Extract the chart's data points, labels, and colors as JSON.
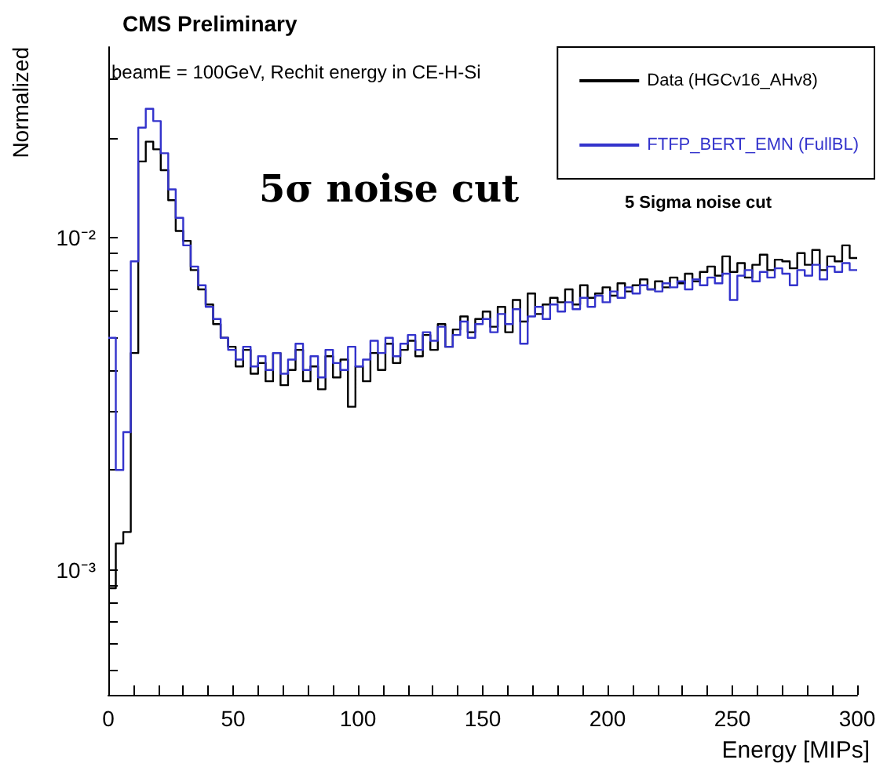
{
  "chart_data": {
    "type": "histogram",
    "title": "CMS Preliminary",
    "xlabel": "Energy [MIPs]",
    "ylabel": "Normalized",
    "annotations": [
      "beamE = 100GeV, Rechit energy in CE-H-Si",
      "5σ noise cut",
      "5 Sigma noise cut"
    ],
    "bins": [
      0,
      3,
      6,
      9,
      12,
      15,
      18,
      21,
      24,
      27,
      30,
      33,
      36,
      39,
      42,
      45,
      48,
      51,
      54,
      57,
      60,
      63,
      66,
      69,
      72,
      75,
      78,
      81,
      84,
      87,
      90,
      93,
      96,
      99,
      102,
      105,
      108,
      111,
      114,
      117,
      120,
      123,
      126,
      129,
      132,
      135,
      138,
      141,
      144,
      147,
      150,
      153,
      156,
      159,
      162,
      165,
      168,
      171,
      174,
      177,
      180,
      183,
      186,
      189,
      192,
      195,
      198,
      201,
      204,
      207,
      210,
      213,
      216,
      219,
      222,
      225,
      228,
      231,
      234,
      237,
      240,
      243,
      246,
      249,
      252,
      255,
      258,
      261,
      264,
      267,
      270,
      273,
      276,
      279,
      282,
      285,
      288,
      291,
      294,
      297,
      300
    ],
    "series": [
      {
        "name": "Data (HGCv16_AHv8)",
        "color": "#000000",
        "values": [
          0.00088,
          0.0012,
          0.0013,
          0.0045,
          0.017,
          0.0195,
          0.0185,
          0.016,
          0.013,
          0.0105,
          0.0098,
          0.008,
          0.007,
          0.0063,
          0.0055,
          0.005,
          0.0047,
          0.0041,
          0.0046,
          0.0039,
          0.0042,
          0.0037,
          0.0045,
          0.0036,
          0.004,
          0.0046,
          0.0037,
          0.0041,
          0.0035,
          0.0044,
          0.0038,
          0.0043,
          0.0031,
          0.0041,
          0.0037,
          0.0045,
          0.004,
          0.0048,
          0.0042,
          0.0046,
          0.0049,
          0.0044,
          0.0051,
          0.0046,
          0.0055,
          0.0047,
          0.0053,
          0.0058,
          0.0052,
          0.0057,
          0.006,
          0.0054,
          0.0062,
          0.0052,
          0.0065,
          0.0056,
          0.0068,
          0.0059,
          0.0063,
          0.0066,
          0.0064,
          0.007,
          0.0063,
          0.0072,
          0.0066,
          0.0068,
          0.0071,
          0.0067,
          0.0073,
          0.0069,
          0.0072,
          0.0075,
          0.007,
          0.0074,
          0.0071,
          0.0076,
          0.0073,
          0.0078,
          0.0074,
          0.0079,
          0.0082,
          0.0077,
          0.0088,
          0.0079,
          0.0084,
          0.0076,
          0.0083,
          0.0089,
          0.008,
          0.0086,
          0.0085,
          0.0081,
          0.009,
          0.0083,
          0.0092,
          0.008,
          0.0088,
          0.0085,
          0.0095,
          0.0087
        ]
      },
      {
        "name": "FTFP_BERT_EMN (FullBL)",
        "color": "#3333cc",
        "values": [
          0.005,
          0.002,
          0.0026,
          0.0085,
          0.0215,
          0.0245,
          0.0225,
          0.018,
          0.014,
          0.0115,
          0.0095,
          0.0082,
          0.0072,
          0.0062,
          0.0057,
          0.005,
          0.0046,
          0.0043,
          0.0047,
          0.0041,
          0.0044,
          0.004,
          0.0045,
          0.0039,
          0.0043,
          0.0048,
          0.004,
          0.0044,
          0.0038,
          0.0046,
          0.0042,
          0.004,
          0.0047,
          0.0041,
          0.0043,
          0.0049,
          0.0045,
          0.005,
          0.0044,
          0.0048,
          0.0051,
          0.0046,
          0.0052,
          0.0049,
          0.0054,
          0.0047,
          0.0051,
          0.0056,
          0.005,
          0.0055,
          0.0057,
          0.0052,
          0.0059,
          0.0055,
          0.0061,
          0.0048,
          0.0058,
          0.0062,
          0.0057,
          0.0063,
          0.006,
          0.0064,
          0.0061,
          0.0066,
          0.0062,
          0.0067,
          0.0064,
          0.0069,
          0.0066,
          0.0071,
          0.0068,
          0.0072,
          0.007,
          0.0069,
          0.0073,
          0.0071,
          0.0074,
          0.007,
          0.0075,
          0.0072,
          0.0076,
          0.0073,
          0.0078,
          0.0065,
          0.0077,
          0.008,
          0.0074,
          0.0079,
          0.0076,
          0.0081,
          0.0078,
          0.0072,
          0.008,
          0.0077,
          0.0083,
          0.0075,
          0.0082,
          0.0079,
          0.0084,
          0.008
        ]
      }
    ],
    "xlim": [
      0,
      300
    ],
    "xticks": [
      0,
      {
        "value": 10,
        "label": null
      },
      {
        "value": 20,
        "label": null
      },
      {
        "value": 30,
        "label": null
      },
      {
        "value": 40,
        "label": null
      },
      50,
      {
        "value": 60,
        "label": null
      },
      {
        "value": 70,
        "label": null
      },
      {
        "value": 80,
        "label": null
      },
      {
        "value": 90,
        "label": null
      },
      100,
      {
        "value": 110,
        "label": null
      },
      {
        "value": 120,
        "label": null
      },
      {
        "value": 130,
        "label": null
      },
      {
        "value": 140,
        "label": null
      },
      150,
      {
        "value": 160,
        "label": null
      },
      {
        "value": 170,
        "label": null
      },
      {
        "value": 180,
        "label": null
      },
      {
        "value": 190,
        "label": null
      },
      200,
      {
        "value": 210,
        "label": null
      },
      {
        "value": 220,
        "label": null
      },
      {
        "value": 230,
        "label": null
      },
      {
        "value": 240,
        "label": null
      },
      250,
      {
        "value": 260,
        "label": null
      },
      {
        "value": 270,
        "label": null
      },
      {
        "value": 280,
        "label": null
      },
      {
        "value": 290,
        "label": null
      },
      300
    ],
    "ylim": [
      0.00042,
      0.0376
    ],
    "yticks": [
      {
        "value": 0.0005,
        "label": null
      },
      {
        "value": 0.0006,
        "label": null
      },
      {
        "value": 0.0007,
        "label": null
      },
      {
        "value": 0.0008,
        "label": null
      },
      {
        "value": 0.0009,
        "label": null
      },
      {
        "value": 0.001,
        "label": "10⁻³"
      },
      {
        "value": 0.002,
        "label": null
      },
      {
        "value": 0.003,
        "label": null
      },
      {
        "value": 0.004,
        "label": null
      },
      {
        "value": 0.005,
        "label": null
      },
      {
        "value": 0.006,
        "label": null
      },
      {
        "value": 0.007,
        "label": null
      },
      {
        "value": 0.008,
        "label": null
      },
      {
        "value": 0.009,
        "label": null
      },
      {
        "value": 0.01,
        "label": "10⁻²"
      },
      {
        "value": 0.02,
        "label": null
      },
      {
        "value": 0.03,
        "label": null
      }
    ],
    "log": "y",
    "grid": false,
    "legend": "top right",
    "line_style": "solid",
    "marker": "none"
  }
}
